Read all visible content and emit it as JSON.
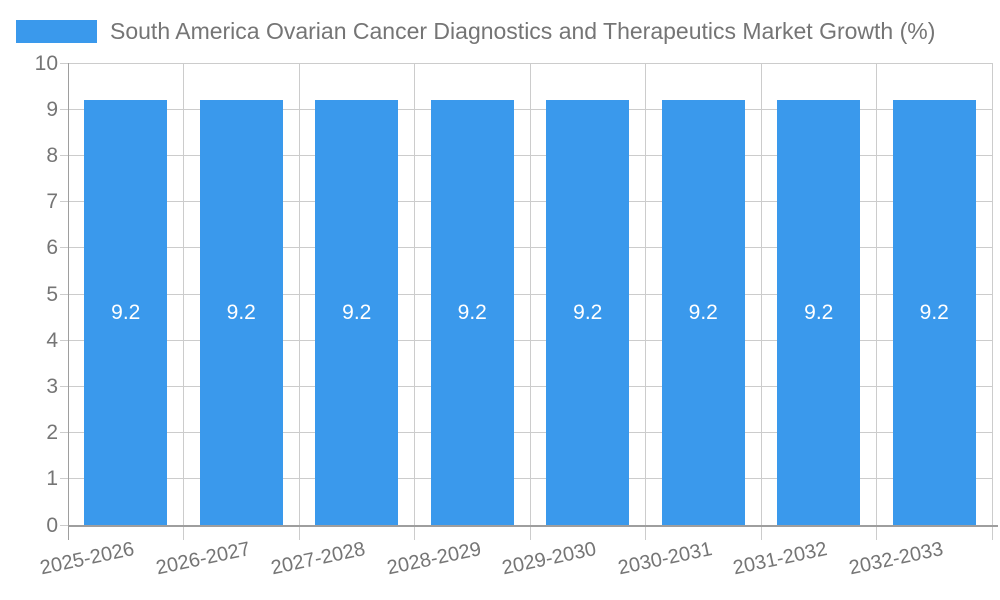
{
  "chart_data": {
    "type": "bar",
    "title": "South America Ovarian Cancer Diagnostics and Therapeutics Market Growth (%)",
    "legend": {
      "position": "top-left",
      "label": "South America Ovarian Cancer Diagnostics and Therapeutics Market Growth (%)"
    },
    "categories": [
      "2025-2026",
      "2026-2027",
      "2027-2028",
      "2028-2029",
      "2029-2030",
      "2030-2031",
      "2031-2032",
      "2032-2033"
    ],
    "values": [
      9.2,
      9.2,
      9.2,
      9.2,
      9.2,
      9.2,
      9.2,
      9.2
    ],
    "bar_value_labels": [
      "9.2",
      "9.2",
      "9.2",
      "9.2",
      "9.2",
      "9.2",
      "9.2",
      "9.2"
    ],
    "xlabel": "",
    "ylabel": "",
    "ylim": [
      0,
      10
    ],
    "yticks": [
      0,
      1,
      2,
      3,
      4,
      5,
      6,
      7,
      8,
      9,
      10
    ],
    "grid": true,
    "x_tick_rotation_deg": -12,
    "colors": {
      "bar": "#3a99ec",
      "title_text": "#757575",
      "axis_text": "#757575",
      "gridline": "#cccccc",
      "axis_line": "#9e9e9e",
      "value_label_text": "#ffffff",
      "background": "#ffffff"
    }
  }
}
